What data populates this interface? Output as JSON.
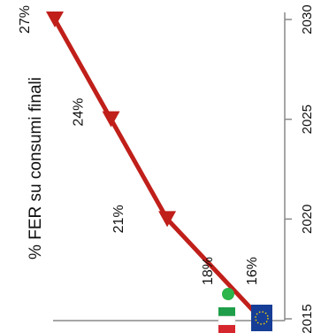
{
  "chart_data": {
    "type": "line",
    "orientation": "rotated-90",
    "title": "",
    "ylabel": "% FER su consumi finali",
    "xlabel": "",
    "x": [
      2015,
      2020,
      2025,
      2030
    ],
    "xlim": [
      2015,
      2030
    ],
    "xticks": [
      "2015",
      "2020",
      "2025",
      "2030"
    ],
    "series": [
      {
        "color": "#c01f1a",
        "x": [
          2015,
          2020,
          2025,
          2030
        ],
        "values": [
          16,
          21,
          24,
          27
        ],
        "labels": [
          "16%",
          "21%",
          "24%",
          "27%"
        ]
      }
    ],
    "annotations": [
      {
        "text": "18%",
        "x": 2015,
        "value": 18,
        "marker": "green-dot",
        "marker_color": "#2bb54a",
        "flag": "italy-flag-icon"
      },
      {
        "text": "16%",
        "x": 2015,
        "value": 16,
        "flag": "eu-flag-icon"
      }
    ],
    "grid": false,
    "legend": "none"
  }
}
